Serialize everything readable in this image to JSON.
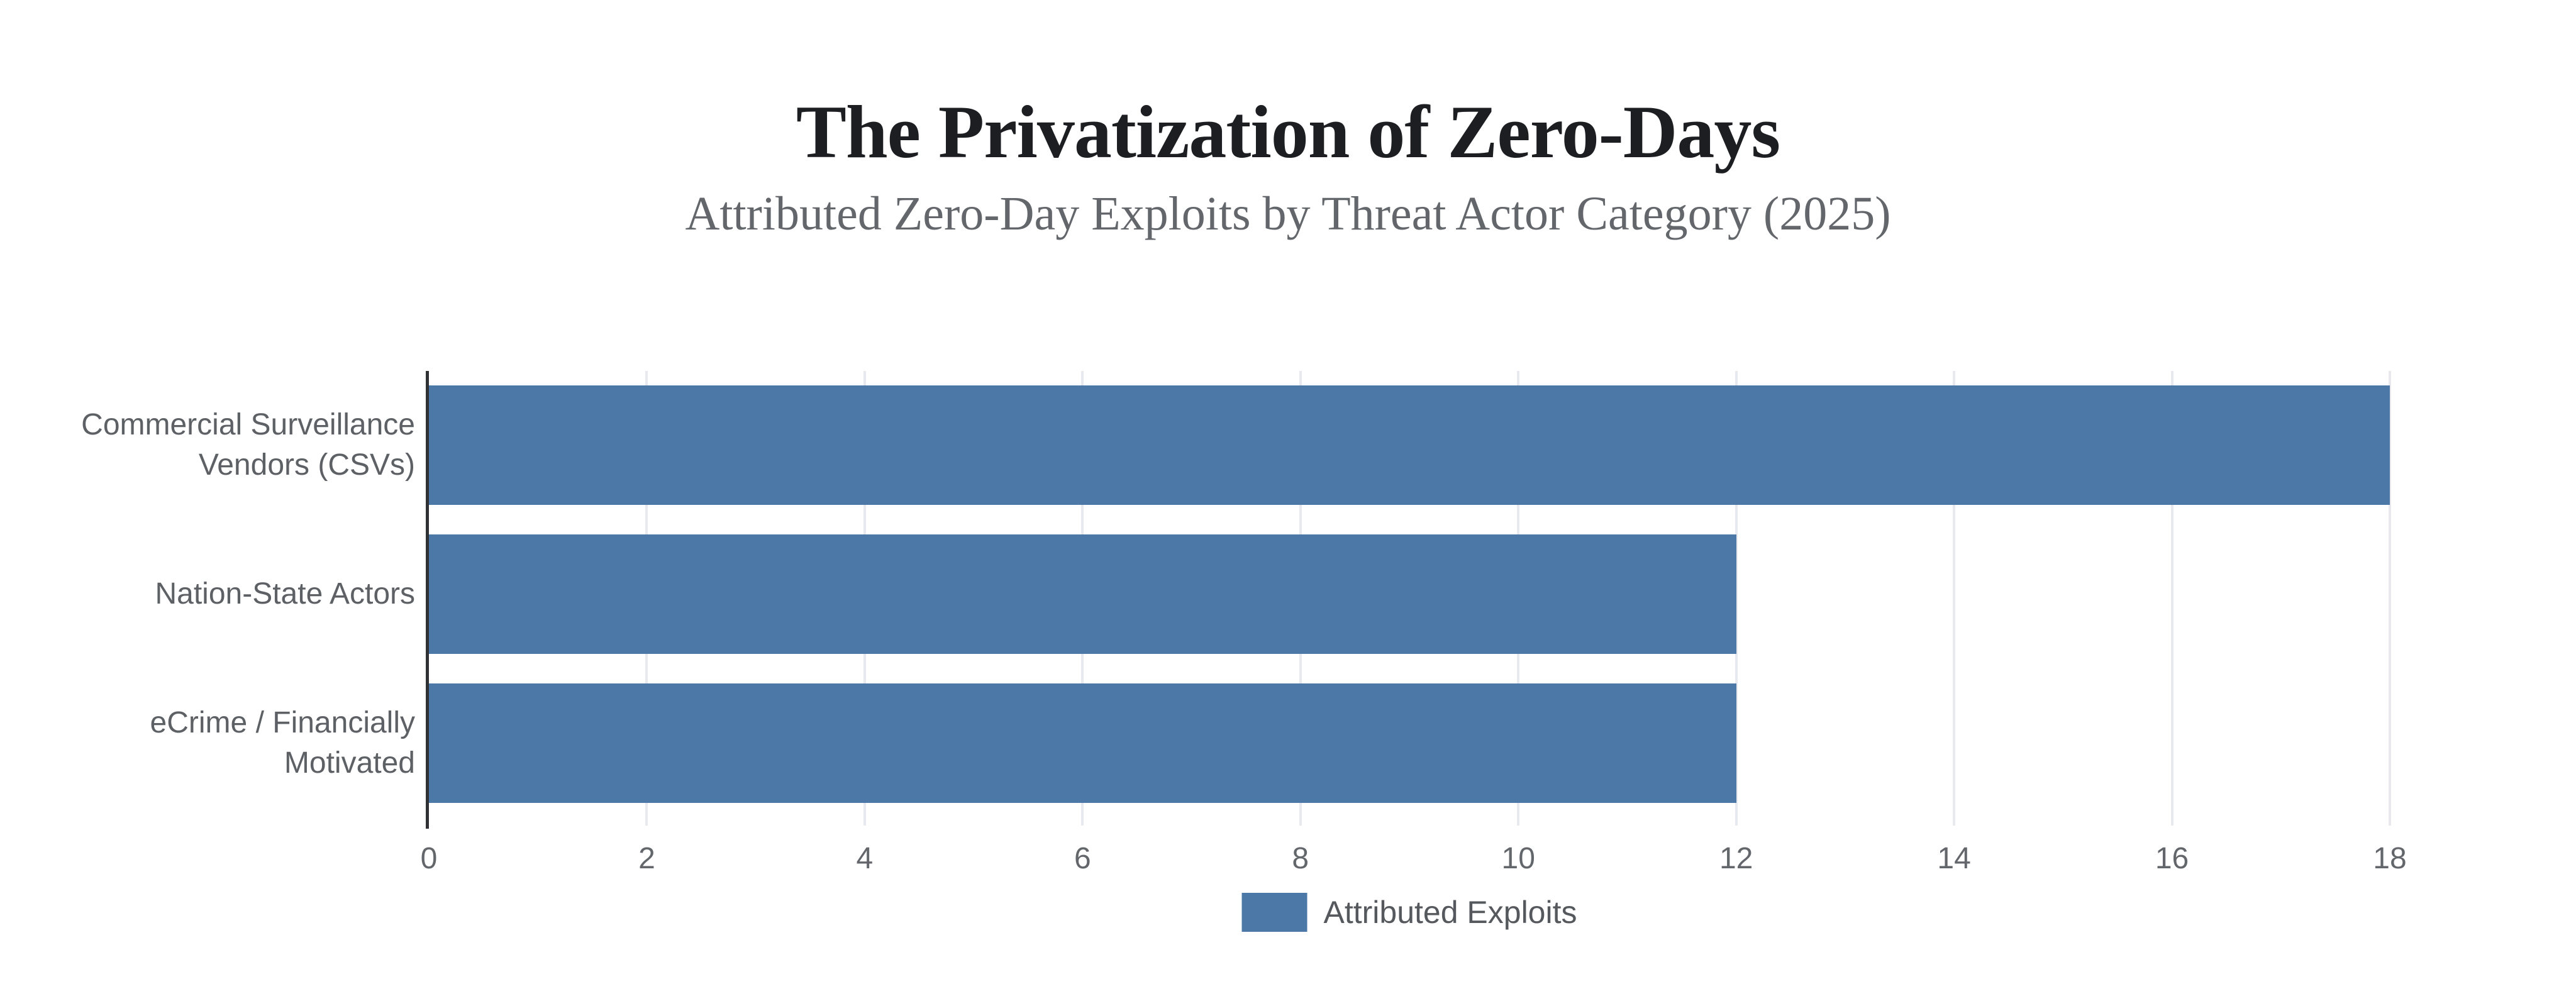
{
  "chart_data": {
    "type": "bar",
    "orientation": "horizontal",
    "title": "The Privatization of Zero-Days",
    "subtitle": "Attributed Zero-Day Exploits by Threat Actor Category (2025)",
    "categories": [
      "Commercial Surveillance Vendors (CSVs)",
      "Nation-State Actors",
      "eCrime / Financially Motivated"
    ],
    "category_label_lines": [
      [
        "Commercial Surveillance",
        "Vendors (CSVs)"
      ],
      [
        "Nation-State Actors"
      ],
      [
        "eCrime / Financially",
        "Motivated"
      ]
    ],
    "series": [
      {
        "name": "Attributed Exploits",
        "values": [
          18,
          12,
          12
        ]
      }
    ],
    "xlabel": "",
    "ylabel": "",
    "xlim": [
      0,
      18
    ],
    "x_ticks": [
      0,
      2,
      4,
      6,
      8,
      10,
      12,
      14,
      16,
      18
    ],
    "grid": "vertical-on",
    "legend": {
      "position": "bottom-center",
      "label": "Attributed Exploits"
    },
    "colors": {
      "bar": "#4c78a8",
      "title": "#1c1e22",
      "subtitle": "#63666b",
      "axis_line": "#2f3134",
      "gridline": "#e8e9ef",
      "tick_label": "#63666b",
      "category_label": "#5d6064",
      "legend_label": "#55585c",
      "background": "#ffffff"
    }
  }
}
